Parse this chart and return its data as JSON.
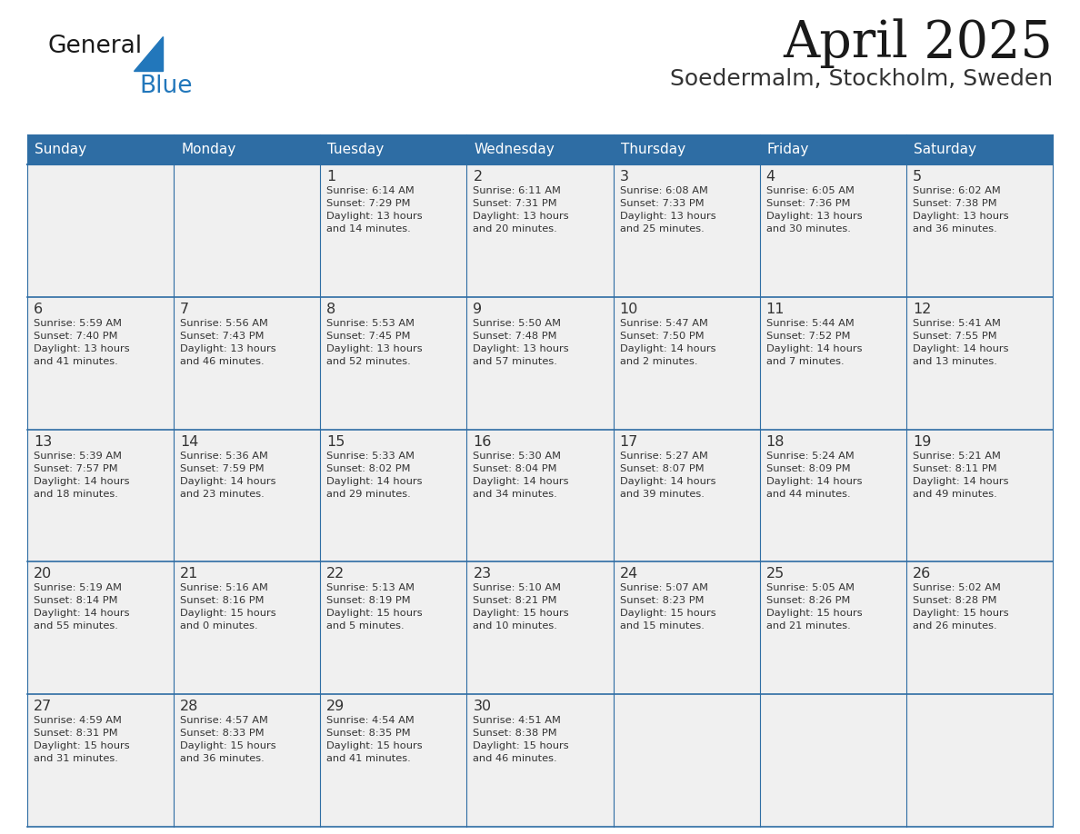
{
  "title": "April 2025",
  "subtitle": "Soedermalm, Stockholm, Sweden",
  "header_bg": "#2E6DA4",
  "header_text_color": "#FFFFFF",
  "cell_bg_light": "#F0F0F0",
  "separator_color": "#2E6DA4",
  "text_color": "#333333",
  "days_of_week": [
    "Sunday",
    "Monday",
    "Tuesday",
    "Wednesday",
    "Thursday",
    "Friday",
    "Saturday"
  ],
  "weeks": [
    [
      {
        "day": "",
        "info": ""
      },
      {
        "day": "",
        "info": ""
      },
      {
        "day": "1",
        "info": "Sunrise: 6:14 AM\nSunset: 7:29 PM\nDaylight: 13 hours\nand 14 minutes."
      },
      {
        "day": "2",
        "info": "Sunrise: 6:11 AM\nSunset: 7:31 PM\nDaylight: 13 hours\nand 20 minutes."
      },
      {
        "day": "3",
        "info": "Sunrise: 6:08 AM\nSunset: 7:33 PM\nDaylight: 13 hours\nand 25 minutes."
      },
      {
        "day": "4",
        "info": "Sunrise: 6:05 AM\nSunset: 7:36 PM\nDaylight: 13 hours\nand 30 minutes."
      },
      {
        "day": "5",
        "info": "Sunrise: 6:02 AM\nSunset: 7:38 PM\nDaylight: 13 hours\nand 36 minutes."
      }
    ],
    [
      {
        "day": "6",
        "info": "Sunrise: 5:59 AM\nSunset: 7:40 PM\nDaylight: 13 hours\nand 41 minutes."
      },
      {
        "day": "7",
        "info": "Sunrise: 5:56 AM\nSunset: 7:43 PM\nDaylight: 13 hours\nand 46 minutes."
      },
      {
        "day": "8",
        "info": "Sunrise: 5:53 AM\nSunset: 7:45 PM\nDaylight: 13 hours\nand 52 minutes."
      },
      {
        "day": "9",
        "info": "Sunrise: 5:50 AM\nSunset: 7:48 PM\nDaylight: 13 hours\nand 57 minutes."
      },
      {
        "day": "10",
        "info": "Sunrise: 5:47 AM\nSunset: 7:50 PM\nDaylight: 14 hours\nand 2 minutes."
      },
      {
        "day": "11",
        "info": "Sunrise: 5:44 AM\nSunset: 7:52 PM\nDaylight: 14 hours\nand 7 minutes."
      },
      {
        "day": "12",
        "info": "Sunrise: 5:41 AM\nSunset: 7:55 PM\nDaylight: 14 hours\nand 13 minutes."
      }
    ],
    [
      {
        "day": "13",
        "info": "Sunrise: 5:39 AM\nSunset: 7:57 PM\nDaylight: 14 hours\nand 18 minutes."
      },
      {
        "day": "14",
        "info": "Sunrise: 5:36 AM\nSunset: 7:59 PM\nDaylight: 14 hours\nand 23 minutes."
      },
      {
        "day": "15",
        "info": "Sunrise: 5:33 AM\nSunset: 8:02 PM\nDaylight: 14 hours\nand 29 minutes."
      },
      {
        "day": "16",
        "info": "Sunrise: 5:30 AM\nSunset: 8:04 PM\nDaylight: 14 hours\nand 34 minutes."
      },
      {
        "day": "17",
        "info": "Sunrise: 5:27 AM\nSunset: 8:07 PM\nDaylight: 14 hours\nand 39 minutes."
      },
      {
        "day": "18",
        "info": "Sunrise: 5:24 AM\nSunset: 8:09 PM\nDaylight: 14 hours\nand 44 minutes."
      },
      {
        "day": "19",
        "info": "Sunrise: 5:21 AM\nSunset: 8:11 PM\nDaylight: 14 hours\nand 49 minutes."
      }
    ],
    [
      {
        "day": "20",
        "info": "Sunrise: 5:19 AM\nSunset: 8:14 PM\nDaylight: 14 hours\nand 55 minutes."
      },
      {
        "day": "21",
        "info": "Sunrise: 5:16 AM\nSunset: 8:16 PM\nDaylight: 15 hours\nand 0 minutes."
      },
      {
        "day": "22",
        "info": "Sunrise: 5:13 AM\nSunset: 8:19 PM\nDaylight: 15 hours\nand 5 minutes."
      },
      {
        "day": "23",
        "info": "Sunrise: 5:10 AM\nSunset: 8:21 PM\nDaylight: 15 hours\nand 10 minutes."
      },
      {
        "day": "24",
        "info": "Sunrise: 5:07 AM\nSunset: 8:23 PM\nDaylight: 15 hours\nand 15 minutes."
      },
      {
        "day": "25",
        "info": "Sunrise: 5:05 AM\nSunset: 8:26 PM\nDaylight: 15 hours\nand 21 minutes."
      },
      {
        "day": "26",
        "info": "Sunrise: 5:02 AM\nSunset: 8:28 PM\nDaylight: 15 hours\nand 26 minutes."
      }
    ],
    [
      {
        "day": "27",
        "info": "Sunrise: 4:59 AM\nSunset: 8:31 PM\nDaylight: 15 hours\nand 31 minutes."
      },
      {
        "day": "28",
        "info": "Sunrise: 4:57 AM\nSunset: 8:33 PM\nDaylight: 15 hours\nand 36 minutes."
      },
      {
        "day": "29",
        "info": "Sunrise: 4:54 AM\nSunset: 8:35 PM\nDaylight: 15 hours\nand 41 minutes."
      },
      {
        "day": "30",
        "info": "Sunrise: 4:51 AM\nSunset: 8:38 PM\nDaylight: 15 hours\nand 46 minutes."
      },
      {
        "day": "",
        "info": ""
      },
      {
        "day": "",
        "info": ""
      },
      {
        "day": "",
        "info": ""
      }
    ]
  ],
  "logo_color_general": "#1a1a1a",
  "logo_color_blue": "#2277BB",
  "logo_triangle_color": "#2277BB",
  "fig_width": 11.88,
  "fig_height": 9.18,
  "dpi": 100
}
